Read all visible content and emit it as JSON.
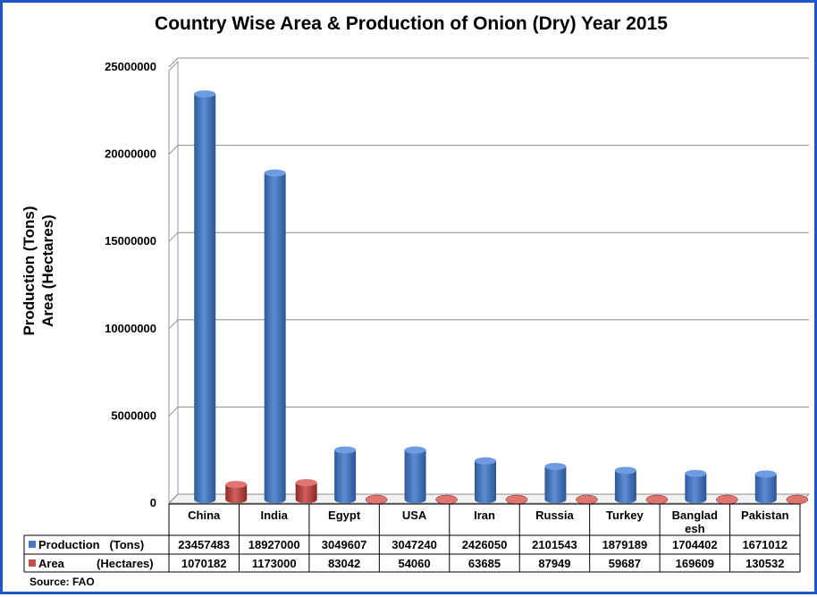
{
  "chart_data": {
    "type": "bar",
    "title": "Country Wise Area & Production of Onion (Dry) Year 2015",
    "ylabel_lines": [
      "Production (Tons)",
      "Area (Hectares)"
    ],
    "ylim": [
      0,
      25000000
    ],
    "yticks": [
      {
        "value": 0,
        "label": "0"
      },
      {
        "value": 5000000,
        "label": "5000000"
      },
      {
        "value": 10000000,
        "label": "10000000"
      },
      {
        "value": 15000000,
        "label": "15000000"
      },
      {
        "value": 20000000,
        "label": "20000000"
      },
      {
        "value": 25000000,
        "label": "25000000"
      }
    ],
    "grid": true,
    "categories": [
      [
        "China"
      ],
      [
        "India"
      ],
      [
        "Egypt"
      ],
      [
        "USA"
      ],
      [
        "Iran"
      ],
      [
        "Russia"
      ],
      [
        "Turkey"
      ],
      [
        "Banglad",
        "esh"
      ],
      [
        "Pakistan"
      ]
    ],
    "series": [
      {
        "name": "Production   (Tons)",
        "color": "#4a7bc4",
        "values": [
          23457483,
          18927000,
          3049607,
          3047240,
          2426050,
          2101543,
          1879189,
          1704402,
          1671012
        ]
      },
      {
        "name": "Area          (Hectares)",
        "color": "#c0504d",
        "values": [
          1070182,
          1173000,
          83042,
          54060,
          63685,
          87949,
          59687,
          169609,
          130532
        ]
      }
    ],
    "source": "Source: FAO"
  }
}
